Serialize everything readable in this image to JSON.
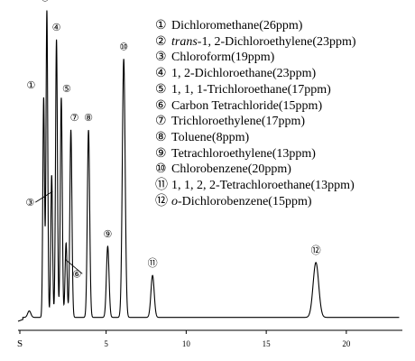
{
  "chart_data": {
    "type": "line",
    "title": "",
    "xlabel": "",
    "ylabel": "",
    "x_ticks": [
      "S",
      "5",
      "10",
      "15",
      "20"
    ],
    "xlim": [
      -0.5,
      23.5
    ],
    "grid": false,
    "legend_position": "top-right",
    "baseline": 0.04,
    "peaks": [
      {
        "id": 1,
        "label": "①",
        "compound": "Dichloromethane",
        "concentration": "(26ppm)",
        "rt": 1.1,
        "height": 0.72
      },
      {
        "id": 2,
        "label": "②",
        "compound_prefix": "trans",
        "compound": "-1, 2-Dichloroethylene",
        "concentration": "(23ppm)",
        "rt": 1.3,
        "height": 0.99
      },
      {
        "id": 3,
        "label": "③",
        "compound": "Chloroform",
        "concentration": "(19ppm)",
        "rt": 1.6,
        "height": 0.48
      },
      {
        "id": 4,
        "label": "④",
        "compound": "1, 2-Dichloroethane",
        "concentration": "(23ppm)",
        "rt": 1.9,
        "height": 0.9
      },
      {
        "id": 5,
        "label": "⑤",
        "compound": "1, 1, 1-Trichloroethane",
        "concentration": "(17ppm)",
        "rt": 2.2,
        "height": 0.72
      },
      {
        "id": 6,
        "label": "⑥",
        "compound": "Carbon Tetrachloride",
        "concentration": "(15ppm)",
        "rt": 2.5,
        "height": 0.27
      },
      {
        "id": 7,
        "label": "⑦",
        "compound": "Trichloroethylene",
        "concentration": "(17ppm)",
        "rt": 2.8,
        "height": 0.62
      },
      {
        "id": 8,
        "label": "⑧",
        "compound": "Toluene",
        "concentration": "(8ppm)",
        "rt": 3.9,
        "height": 0.62
      },
      {
        "id": 9,
        "label": "⑨",
        "compound": "Tetrachloroethylene",
        "concentration": "(13ppm)",
        "rt": 5.1,
        "height": 0.26
      },
      {
        "id": 10,
        "label": "⑩",
        "compound": "Chlorobenzene",
        "concentration": "(20ppm)",
        "rt": 6.1,
        "height": 0.84
      },
      {
        "id": 11,
        "label": "⑪",
        "compound": "1, 1, 2, 2-Tetrachloroethane",
        "concentration": "(13ppm)",
        "rt": 7.9,
        "height": 0.17
      },
      {
        "id": 12,
        "label": "⑫",
        "compound_prefix": "o",
        "compound": "-Dichlorobenzene",
        "concentration": "(15ppm)",
        "rt": 18.1,
        "height": 0.21
      }
    ]
  }
}
